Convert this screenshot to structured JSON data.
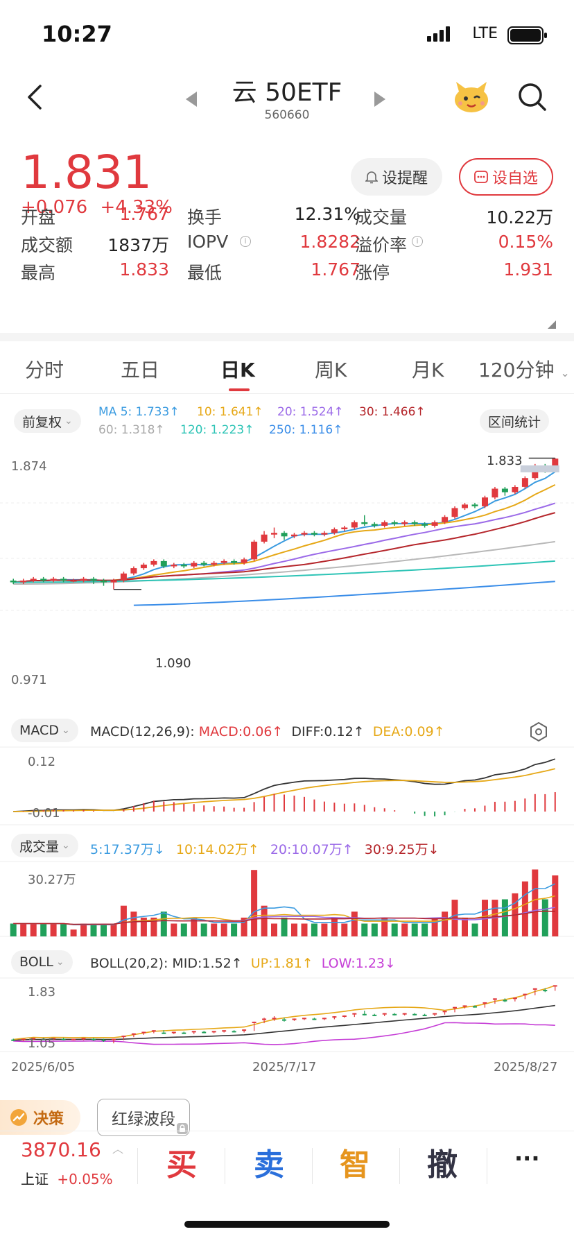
{
  "status_bar": {
    "time": "10:27",
    "network": "LTE"
  },
  "header": {
    "title": "云 50ETF",
    "code": "560660"
  },
  "quote": {
    "price": "1.831",
    "change": "+0.076",
    "change_pct": "+4.33%",
    "alert_label": "设提醒",
    "watch_label": "设自选"
  },
  "stats": [
    {
      "label": "开盘",
      "value": "1.767",
      "color": "#e0393e"
    },
    {
      "label": "换手",
      "value": "12.31%",
      "color": "#222"
    },
    {
      "label": "成交量",
      "value": "10.22万",
      "color": "#222"
    },
    {
      "label": "成交额",
      "value": "1837万",
      "color": "#222"
    },
    {
      "label": "IOPV",
      "value": "1.8282",
      "color": "#e0393e"
    },
    {
      "label": "溢价率",
      "value": "0.15%",
      "color": "#e0393e"
    },
    {
      "label": "最高",
      "value": "1.833",
      "color": "#e0393e"
    },
    {
      "label": "最低",
      "value": "1.767",
      "color": "#e0393e"
    },
    {
      "label": "涨停",
      "value": "1.931",
      "color": "#e0393e"
    }
  ],
  "tabs": [
    "分时",
    "五日",
    "日K",
    "周K",
    "月K",
    "120分钟"
  ],
  "active_tab": "日K",
  "kline": {
    "adjust_label": "前复权",
    "range_stats_label": "区间统计",
    "ma_values": [
      {
        "label": "MA 5: 1.733↑",
        "color": "#3a9be0"
      },
      {
        "label": "10: 1.641↑",
        "color": "#e6a817"
      },
      {
        "label": "20: 1.524↑",
        "color": "#9b6ae8"
      },
      {
        "label": "30: 1.466↑",
        "color": "#b5262b"
      },
      {
        "label": "60: 1.318↑",
        "color": "#aaaaaa"
      },
      {
        "label": "120: 1.223↑",
        "color": "#2ec4b6"
      },
      {
        "label": "250: 1.116↑",
        "color": "#3a8de8"
      }
    ],
    "y_max_label": "1.874",
    "y_min_label": "0.971",
    "high_marker": "1.833",
    "low_marker": "1.090"
  },
  "macd": {
    "name": "MACD",
    "params": "MACD(12,26,9):",
    "macd": "MACD:0.06↑",
    "diff": "DIFF:0.12↑",
    "dea": "DEA:0.09↑",
    "y_top": "0.12",
    "y_bottom": "-0.01"
  },
  "volume": {
    "name": "成交量",
    "ma5": "5:17.37万↓",
    "ma10": "10:14.02万↑",
    "ma20": "20:10.07万↑",
    "ma30": "30:9.25万↓",
    "y_top": "30.27万"
  },
  "boll": {
    "name": "BOLL",
    "params": "BOLL(20,2):",
    "mid": "MID:1.52↑",
    "up": "UP:1.81↑",
    "low": "LOW:1.23↓",
    "y_top": "1.83",
    "y_bottom": "1.05"
  },
  "x_axis": [
    "2025/6/05",
    "2025/7/17",
    "2025/8/27"
  ],
  "decision_label": "决策",
  "wave_label": "红绿波段",
  "index": {
    "value": "3870.16",
    "name": "上证",
    "change": "+0.05%"
  },
  "actions": {
    "buy": "买",
    "sell": "卖",
    "smart": "智",
    "cancel": "撤",
    "more": "···"
  },
  "candles": [
    [
      1.14,
      1.13,
      1.15,
      1.12
    ],
    [
      1.13,
      1.14,
      1.15,
      1.12
    ],
    [
      1.14,
      1.15,
      1.16,
      1.13
    ],
    [
      1.15,
      1.14,
      1.16,
      1.13
    ],
    [
      1.14,
      1.15,
      1.16,
      1.13
    ],
    [
      1.15,
      1.14,
      1.16,
      1.13
    ],
    [
      1.14,
      1.14,
      1.15,
      1.13
    ],
    [
      1.14,
      1.15,
      1.16,
      1.13
    ],
    [
      1.15,
      1.14,
      1.16,
      1.12
    ],
    [
      1.14,
      1.13,
      1.15,
      1.11
    ],
    [
      1.13,
      1.14,
      1.15,
      1.09
    ],
    [
      1.14,
      1.18,
      1.19,
      1.13
    ],
    [
      1.18,
      1.21,
      1.22,
      1.17
    ],
    [
      1.21,
      1.23,
      1.24,
      1.2
    ],
    [
      1.23,
      1.25,
      1.26,
      1.22
    ],
    [
      1.25,
      1.22,
      1.26,
      1.21
    ],
    [
      1.22,
      1.23,
      1.24,
      1.21
    ],
    [
      1.23,
      1.22,
      1.24,
      1.21
    ],
    [
      1.22,
      1.24,
      1.25,
      1.21
    ],
    [
      1.24,
      1.23,
      1.25,
      1.22
    ],
    [
      1.23,
      1.24,
      1.25,
      1.22
    ],
    [
      1.24,
      1.25,
      1.26,
      1.23
    ],
    [
      1.25,
      1.24,
      1.26,
      1.23
    ],
    [
      1.24,
      1.26,
      1.27,
      1.23
    ],
    [
      1.26,
      1.36,
      1.37,
      1.25
    ],
    [
      1.36,
      1.4,
      1.42,
      1.35
    ],
    [
      1.4,
      1.41,
      1.44,
      1.38
    ],
    [
      1.41,
      1.39,
      1.42,
      1.37
    ],
    [
      1.39,
      1.4,
      1.41,
      1.38
    ],
    [
      1.4,
      1.41,
      1.42,
      1.39
    ],
    [
      1.41,
      1.4,
      1.42,
      1.39
    ],
    [
      1.4,
      1.41,
      1.42,
      1.39
    ],
    [
      1.41,
      1.43,
      1.44,
      1.4
    ],
    [
      1.43,
      1.44,
      1.45,
      1.42
    ],
    [
      1.44,
      1.47,
      1.48,
      1.43
    ],
    [
      1.47,
      1.46,
      1.51,
      1.45
    ],
    [
      1.46,
      1.45,
      1.47,
      1.44
    ],
    [
      1.45,
      1.47,
      1.48,
      1.44
    ],
    [
      1.47,
      1.46,
      1.48,
      1.45
    ],
    [
      1.46,
      1.47,
      1.48,
      1.45
    ],
    [
      1.47,
      1.46,
      1.48,
      1.45
    ],
    [
      1.46,
      1.45,
      1.47,
      1.44
    ],
    [
      1.45,
      1.47,
      1.48,
      1.44
    ],
    [
      1.47,
      1.5,
      1.51,
      1.46
    ],
    [
      1.5,
      1.55,
      1.56,
      1.49
    ],
    [
      1.55,
      1.57,
      1.58,
      1.54
    ],
    [
      1.57,
      1.56,
      1.58,
      1.55
    ],
    [
      1.56,
      1.61,
      1.62,
      1.55
    ],
    [
      1.61,
      1.66,
      1.67,
      1.6
    ],
    [
      1.66,
      1.64,
      1.67,
      1.62
    ],
    [
      1.64,
      1.67,
      1.68,
      1.63
    ],
    [
      1.67,
      1.72,
      1.73,
      1.66
    ],
    [
      1.72,
      1.79,
      1.8,
      1.71
    ],
    [
      1.79,
      1.77,
      1.8,
      1.75
    ],
    [
      1.77,
      1.83,
      1.833,
      1.767
    ]
  ]
}
